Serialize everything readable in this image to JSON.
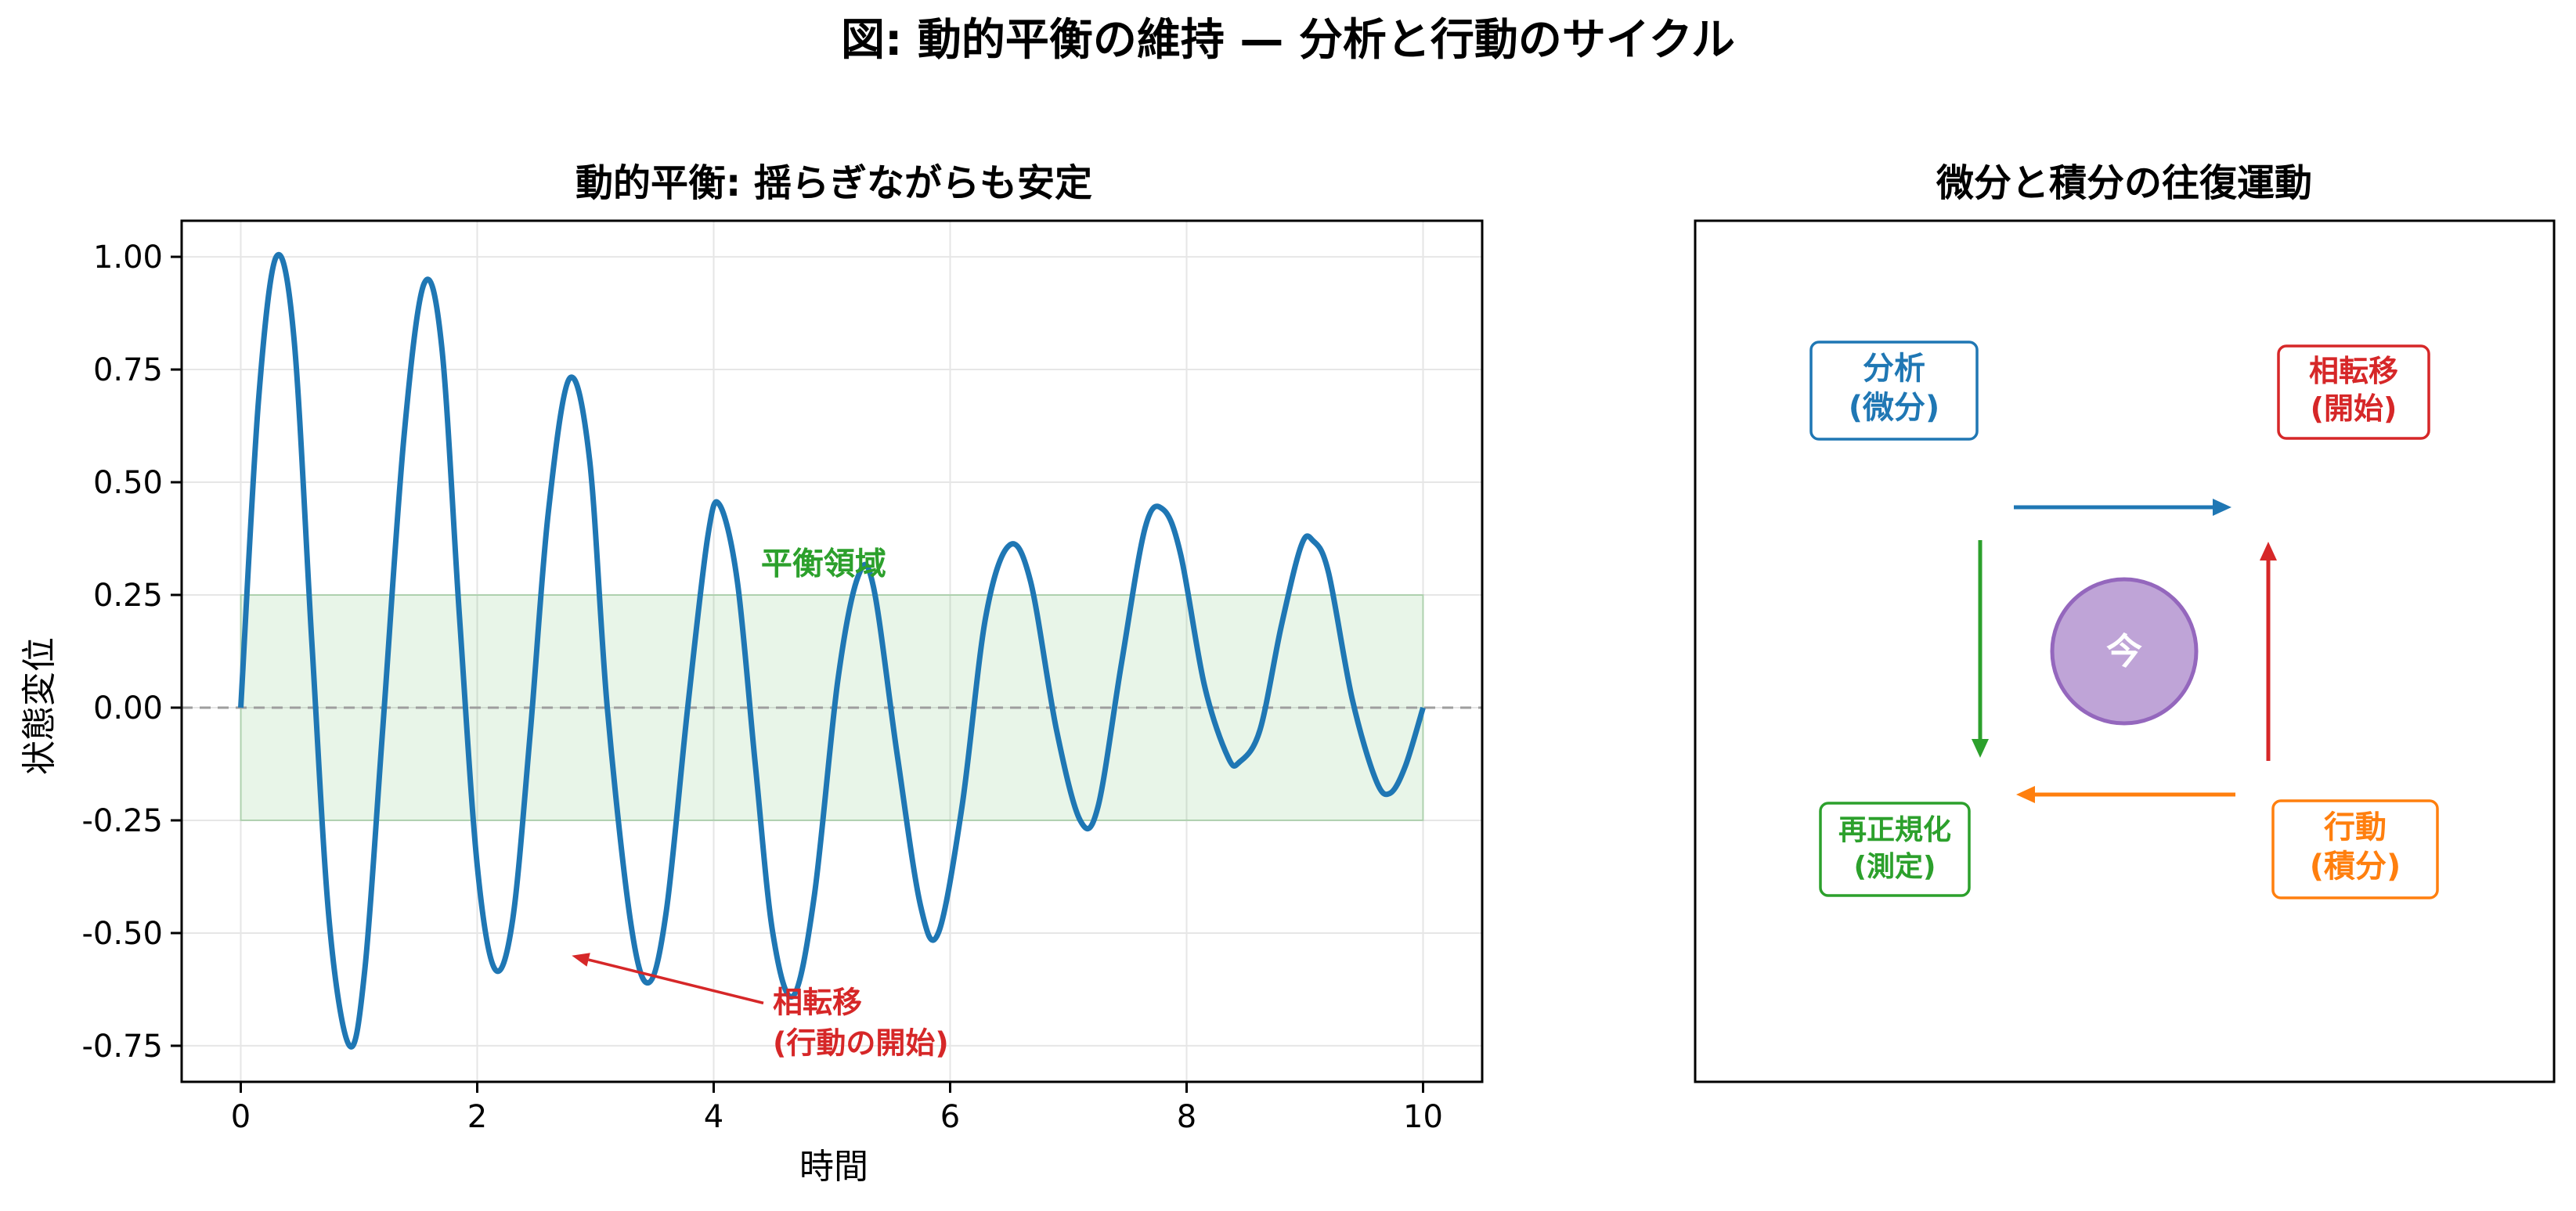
{
  "figure": {
    "suptitle": "図: 動的平衡の維持 — 分析と行動のサイクル"
  },
  "colors": {
    "signal": "#1f77b4",
    "equilibrium": "#2ca02c",
    "transition": "#d62728",
    "action": "#ff7f0e",
    "center": "#9467bd"
  },
  "chart_data": [
    {
      "type": "line",
      "title": "動的平衡: 揺らぎながらも安定",
      "xlabel": "時間",
      "ylabel": "状態変位",
      "xlim": [
        -0.5,
        10.5
      ],
      "ylim": [
        -0.83,
        1.08
      ],
      "xticks": [
        0,
        2,
        4,
        6,
        8,
        10
      ],
      "xtick_labels": [
        "0",
        "2",
        "4",
        "6",
        "8",
        "10"
      ],
      "yticks": [
        -0.75,
        -0.5,
        -0.25,
        0.0,
        0.25,
        0.5,
        0.75,
        1.0
      ],
      "ytick_labels": [
        "-0.75",
        "-0.50",
        "-0.25",
        "0.00",
        "0.25",
        "0.50",
        "0.75",
        "1.00"
      ],
      "grid": true,
      "series": [
        {
          "points": [
            [
              0,
              0
            ],
            [
              0.15,
              0.68
            ],
            [
              0.3,
              1.0
            ],
            [
              0.45,
              0.82
            ],
            [
              0.6,
              0.15
            ],
            [
              0.75,
              -0.48
            ],
            [
              0.92,
              -0.75
            ],
            [
              1.05,
              -0.58
            ],
            [
              1.2,
              -0.05
            ],
            [
              1.38,
              0.6
            ],
            [
              1.55,
              0.94
            ],
            [
              1.7,
              0.8
            ],
            [
              1.85,
              0.2
            ],
            [
              2.0,
              -0.35
            ],
            [
              2.15,
              -0.58
            ],
            [
              2.3,
              -0.47
            ],
            [
              2.45,
              -0.05
            ],
            [
              2.6,
              0.43
            ],
            [
              2.78,
              0.73
            ],
            [
              2.95,
              0.55
            ],
            [
              3.1,
              0.0
            ],
            [
              3.3,
              -0.48
            ],
            [
              3.45,
              -0.61
            ],
            [
              3.6,
              -0.45
            ],
            [
              3.78,
              0.0
            ],
            [
              3.95,
              0.38
            ],
            [
              4.05,
              0.45
            ],
            [
              4.2,
              0.28
            ],
            [
              4.35,
              -0.12
            ],
            [
              4.5,
              -0.5
            ],
            [
              4.67,
              -0.64
            ],
            [
              4.85,
              -0.42
            ],
            [
              5.05,
              0.06
            ],
            [
              5.22,
              0.29
            ],
            [
              5.35,
              0.27
            ],
            [
              5.55,
              -0.1
            ],
            [
              5.75,
              -0.44
            ],
            [
              5.9,
              -0.5
            ],
            [
              6.1,
              -0.22
            ],
            [
              6.3,
              0.2
            ],
            [
              6.5,
              0.36
            ],
            [
              6.68,
              0.28
            ],
            [
              6.9,
              -0.05
            ],
            [
              7.1,
              -0.25
            ],
            [
              7.25,
              -0.22
            ],
            [
              7.45,
              0.1
            ],
            [
              7.65,
              0.4
            ],
            [
              7.8,
              0.44
            ],
            [
              7.95,
              0.34
            ],
            [
              8.15,
              0.05
            ],
            [
              8.35,
              -0.11
            ],
            [
              8.45,
              -0.12
            ],
            [
              8.62,
              -0.05
            ],
            [
              8.8,
              0.18
            ],
            [
              8.97,
              0.36
            ],
            [
              9.07,
              0.37
            ],
            [
              9.2,
              0.3
            ],
            [
              9.4,
              0.02
            ],
            [
              9.6,
              -0.16
            ],
            [
              9.72,
              -0.19
            ],
            [
              9.85,
              -0.13
            ],
            [
              10.0,
              0.0
            ]
          ]
        }
      ],
      "band": {
        "y0": -0.25,
        "y1": 0.25,
        "x0": 0,
        "x1": 10,
        "label": "平衡領域",
        "label_x": 4.4,
        "label_y": 0.32
      },
      "hline": {
        "y": 0.0,
        "style": "dashed"
      },
      "annotation": {
        "text_line1": "相転移",
        "text_line2": "(行動の開始)",
        "text_x": 4.5,
        "text_y": -0.69,
        "arrow_to": [
          2.8,
          -0.55
        ]
      }
    },
    {
      "type": "diagram",
      "title": "微分と積分の往復運動",
      "nodes": [
        {
          "id": "analysis",
          "line1": "分析",
          "line2": "(微分)",
          "color": "#1f77b4"
        },
        {
          "id": "transition",
          "line1": "相転移",
          "line2": "(開始)",
          "color": "#d62728"
        },
        {
          "id": "renorm",
          "line1": "再正規化",
          "line2": "(測定)",
          "color": "#2ca02c"
        },
        {
          "id": "action",
          "line1": "行動",
          "line2": "(積分)",
          "color": "#ff7f0e"
        }
      ],
      "center": {
        "label": "今"
      }
    }
  ]
}
